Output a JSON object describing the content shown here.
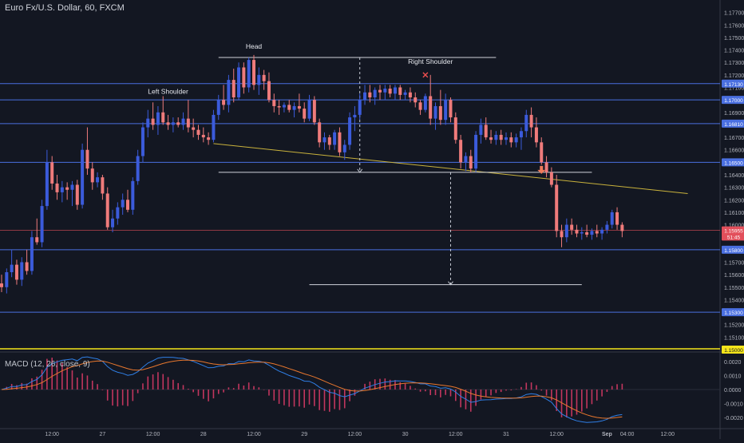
{
  "title": "Euro Fx/U.S. Dollar, 60, FXCM",
  "macd_title": "MACD (12, 26, close, 9)",
  "colors": {
    "background": "#131722",
    "up_candle": "#3b5bdb",
    "down_candle": "#ef7b7b",
    "level_line": "#4a6fe0",
    "neckline": "#c9b23c",
    "support_yellow": "#f5e51b",
    "current_price": "#e24f5b",
    "macd_line": "#2f7fe6",
    "signal_line": "#e8772e",
    "histogram": "#c2365e"
  },
  "chart_data": [
    {
      "type": "candlestick",
      "name": "Euro Fx/U.S. Dollar, 60, FXCM",
      "ylim": [
        1.15,
        1.178
      ],
      "y_ticks": [
        "1.17700",
        "1.17600",
        "1.17500",
        "1.17400",
        "1.17300",
        "1.17200",
        "1.17100",
        "1.17000",
        "1.16900",
        "1.16800",
        "1.16700",
        "1.16600",
        "1.16500",
        "1.16400",
        "1.16300",
        "1.16200",
        "1.16100",
        "1.16000",
        "1.15900",
        "1.15800",
        "1.15700",
        "1.15600",
        "1.15500",
        "1.15400",
        "1.15300",
        "1.15200",
        "1.15100",
        "1.15000"
      ],
      "x_ticks": [
        {
          "label": "12:00",
          "index": 10
        },
        {
          "label": "27",
          "index": 20
        },
        {
          "label": "12:00",
          "index": 30
        },
        {
          "label": "28",
          "index": 40
        },
        {
          "label": "12:00",
          "index": 50
        },
        {
          "label": "29",
          "index": 60
        },
        {
          "label": "12:00",
          "index": 70
        },
        {
          "label": "30",
          "index": 80
        },
        {
          "label": "12:00",
          "index": 90
        },
        {
          "label": "31",
          "index": 100
        },
        {
          "label": "12:00",
          "index": 110
        },
        {
          "label": "Sep",
          "index": 120
        },
        {
          "label": "04:00",
          "index": 124
        },
        {
          "label": "12:00",
          "index": 132
        }
      ],
      "price_badges": [
        {
          "label": "1.17130",
          "value": 1.1713,
          "color": "#4a6fe0"
        },
        {
          "label": "1.17000",
          "value": 1.17,
          "color": "#4a6fe0"
        },
        {
          "label": "1.16810",
          "value": 1.1681,
          "color": "#4a6fe0"
        },
        {
          "label": "1.16500",
          "value": 1.165,
          "color": "#4a6fe0"
        },
        {
          "label": "1.15955",
          "value": 1.15955,
          "color": "#e24f5b"
        },
        {
          "label": "51:45",
          "value": 1.15905,
          "color": "#e24f5b"
        },
        {
          "label": "1.15800",
          "value": 1.158,
          "color": "#4a6fe0"
        },
        {
          "label": "1.15300",
          "value": 1.153,
          "color": "#4a6fe0"
        },
        {
          "label": "1.15000",
          "value": 1.15,
          "color": "#f5e51b"
        }
      ],
      "horizontal_levels": [
        1.1713,
        1.17,
        1.1681,
        1.165,
        1.158,
        1.153
      ],
      "support_level": 1.15,
      "current_price": 1.15955,
      "annotations": [
        {
          "text": "Head",
          "index": 50,
          "price": 1.1741
        },
        {
          "text": "Left Shoulder",
          "index": 33,
          "price": 1.1705
        },
        {
          "text": "Right Shoulder",
          "index": 85,
          "price": 1.1729
        }
      ],
      "neckline": {
        "from": {
          "index": 42,
          "price": 1.1665
        },
        "to": {
          "index": 136,
          "price": 1.1625
        }
      },
      "pattern_lines": [
        {
          "from_index": 43,
          "to_index": 98,
          "price": 1.1734
        },
        {
          "from_index": 43,
          "to_index": 117,
          "price": 1.1642
        },
        {
          "from_index": 61,
          "to_index": 115,
          "price": 1.1552
        }
      ],
      "measure_arrows": [
        {
          "index": 71,
          "from": 1.1734,
          "to": 1.1642
        },
        {
          "index": 89,
          "from": 1.1642,
          "to": 1.1552
        }
      ],
      "x_marker": {
        "index": 84,
        "price": 1.172
      },
      "down_arrow": {
        "index": 107,
        "price": 1.1642
      },
      "candles": [
        [
          1.1553,
          1.156,
          1.1546,
          1.155
        ],
        [
          1.155,
          1.1565,
          1.1545,
          1.1562
        ],
        [
          1.1562,
          1.158,
          1.1558,
          1.1568
        ],
        [
          1.1568,
          1.1572,
          1.1552,
          1.1556
        ],
        [
          1.1556,
          1.1574,
          1.1551,
          1.157
        ],
        [
          1.157,
          1.158,
          1.156,
          1.1563
        ],
        [
          1.1563,
          1.1595,
          1.156,
          1.159
        ],
        [
          1.159,
          1.1605,
          1.1584,
          1.1586
        ],
        [
          1.1586,
          1.162,
          1.1582,
          1.1615
        ],
        [
          1.1615,
          1.166,
          1.1612,
          1.165
        ],
        [
          1.165,
          1.1655,
          1.1628,
          1.1633
        ],
        [
          1.1633,
          1.164,
          1.162,
          1.1626
        ],
        [
          1.1626,
          1.1635,
          1.1618,
          1.163
        ],
        [
          1.163,
          1.1634,
          1.162,
          1.1628
        ],
        [
          1.1628,
          1.1635,
          1.1615,
          1.1632
        ],
        [
          1.1632,
          1.1636,
          1.1612,
          1.1616
        ],
        [
          1.1616,
          1.1665,
          1.1613,
          1.166
        ],
        [
          1.166,
          1.1678,
          1.164,
          1.1645
        ],
        [
          1.1645,
          1.165,
          1.1628,
          1.1634
        ],
        [
          1.1634,
          1.1642,
          1.163,
          1.1638
        ],
        [
          1.1638,
          1.164,
          1.162,
          1.1625
        ],
        [
          1.1625,
          1.163,
          1.1596,
          1.1598
        ],
        [
          1.1598,
          1.1612,
          1.1594,
          1.1605
        ],
        [
          1.1605,
          1.1618,
          1.16,
          1.1614
        ],
        [
          1.1614,
          1.1625,
          1.1608,
          1.162
        ],
        [
          1.162,
          1.1628,
          1.161,
          1.1612
        ],
        [
          1.1612,
          1.1638,
          1.1608,
          1.1635
        ],
        [
          1.1635,
          1.166,
          1.1632,
          1.1655
        ],
        [
          1.1655,
          1.1682,
          1.165,
          1.1678
        ],
        [
          1.1678,
          1.1692,
          1.167,
          1.1685
        ],
        [
          1.1685,
          1.1698,
          1.1676,
          1.168
        ],
        [
          1.168,
          1.1695,
          1.1672,
          1.169
        ],
        [
          1.169,
          1.1703,
          1.168,
          1.1682
        ],
        [
          1.1682,
          1.1688,
          1.1676,
          1.168
        ],
        [
          1.168,
          1.1686,
          1.1674,
          1.1682
        ],
        [
          1.1682,
          1.1686,
          1.1678,
          1.168
        ],
        [
          1.168,
          1.169,
          1.1676,
          1.1685
        ],
        [
          1.1685,
          1.17,
          1.1674,
          1.1678
        ],
        [
          1.1678,
          1.1685,
          1.167,
          1.1676
        ],
        [
          1.1676,
          1.168,
          1.1668,
          1.1672
        ],
        [
          1.1672,
          1.1678,
          1.1666,
          1.167
        ],
        [
          1.167,
          1.1674,
          1.1664,
          1.1668
        ],
        [
          1.1668,
          1.1692,
          1.1666,
          1.1688
        ],
        [
          1.1688,
          1.1704,
          1.1684,
          1.17
        ],
        [
          1.17,
          1.1712,
          1.1692,
          1.1696
        ],
        [
          1.1696,
          1.172,
          1.169,
          1.1716
        ],
        [
          1.1716,
          1.1725,
          1.1698,
          1.1702
        ],
        [
          1.1702,
          1.173,
          1.17,
          1.1726
        ],
        [
          1.1726,
          1.173,
          1.1705,
          1.171
        ],
        [
          1.171,
          1.1734,
          1.1706,
          1.1732
        ],
        [
          1.1732,
          1.1736,
          1.1708,
          1.1712
        ],
        [
          1.1712,
          1.1726,
          1.1704,
          1.172
        ],
        [
          1.172,
          1.1724,
          1.1708,
          1.1715
        ],
        [
          1.1715,
          1.1722,
          1.1698,
          1.17
        ],
        [
          1.17,
          1.1705,
          1.169,
          1.1695
        ],
        [
          1.1695,
          1.17,
          1.1688,
          1.1694
        ],
        [
          1.1694,
          1.1698,
          1.169,
          1.1696
        ],
        [
          1.1696,
          1.17,
          1.169,
          1.1692
        ],
        [
          1.1692,
          1.1698,
          1.1686,
          1.1695
        ],
        [
          1.1695,
          1.1705,
          1.169,
          1.1693
        ],
        [
          1.1693,
          1.1698,
          1.1682,
          1.1685
        ],
        [
          1.1685,
          1.1704,
          1.1683,
          1.17
        ],
        [
          1.17,
          1.1703,
          1.168,
          1.1682
        ],
        [
          1.1682,
          1.1685,
          1.1662,
          1.1666
        ],
        [
          1.1666,
          1.1674,
          1.166,
          1.167
        ],
        [
          1.167,
          1.1672,
          1.166,
          1.1664
        ],
        [
          1.1664,
          1.1676,
          1.166,
          1.1674
        ],
        [
          1.1674,
          1.1678,
          1.1655,
          1.1658
        ],
        [
          1.1658,
          1.1668,
          1.1652,
          1.1664
        ],
        [
          1.1664,
          1.169,
          1.166,
          1.1686
        ],
        [
          1.1686,
          1.1695,
          1.1675,
          1.1688
        ],
        [
          1.1688,
          1.1705,
          1.1684,
          1.17
        ],
        [
          1.17,
          1.1712,
          1.1696,
          1.1706
        ],
        [
          1.1706,
          1.1712,
          1.1698,
          1.1702
        ],
        [
          1.1702,
          1.171,
          1.1696,
          1.1708
        ],
        [
          1.1708,
          1.1712,
          1.17,
          1.1706
        ],
        [
          1.1706,
          1.1712,
          1.17,
          1.1709
        ],
        [
          1.1709,
          1.1712,
          1.1702,
          1.1705
        ],
        [
          1.1705,
          1.1712,
          1.17,
          1.171
        ],
        [
          1.171,
          1.1712,
          1.17,
          1.1704
        ],
        [
          1.1704,
          1.1708,
          1.17,
          1.1706
        ],
        [
          1.1706,
          1.171,
          1.1698,
          1.1702
        ],
        [
          1.1702,
          1.1706,
          1.1694,
          1.1698
        ],
        [
          1.1698,
          1.17,
          1.1688,
          1.1692
        ],
        [
          1.1692,
          1.1705,
          1.169,
          1.1703
        ],
        [
          1.1703,
          1.172,
          1.168,
          1.1685
        ],
        [
          1.1685,
          1.1698,
          1.1676,
          1.1695
        ],
        [
          1.1695,
          1.1708,
          1.168,
          1.1684
        ],
        [
          1.1684,
          1.1705,
          1.168,
          1.17
        ],
        [
          1.17,
          1.1702,
          1.1682,
          1.1686
        ],
        [
          1.1686,
          1.169,
          1.1665,
          1.1668
        ],
        [
          1.1668,
          1.1672,
          1.1645,
          1.165
        ],
        [
          1.165,
          1.1658,
          1.1643,
          1.1655
        ],
        [
          1.1655,
          1.166,
          1.1642,
          1.1645
        ],
        [
          1.1645,
          1.1675,
          1.1642,
          1.1672
        ],
        [
          1.1672,
          1.1685,
          1.1665,
          1.168
        ],
        [
          1.168,
          1.1686,
          1.1668,
          1.167
        ],
        [
          1.167,
          1.1676,
          1.1665,
          1.1668
        ],
        [
          1.1668,
          1.1675,
          1.1664,
          1.1672
        ],
        [
          1.1672,
          1.1676,
          1.1664,
          1.1668
        ],
        [
          1.1668,
          1.1674,
          1.1664,
          1.167
        ],
        [
          1.167,
          1.1674,
          1.1662,
          1.1666
        ],
        [
          1.1666,
          1.1673,
          1.1662,
          1.167
        ],
        [
          1.167,
          1.1678,
          1.166,
          1.1675
        ],
        [
          1.1675,
          1.1692,
          1.167,
          1.1688
        ],
        [
          1.1688,
          1.1694,
          1.167,
          1.1678
        ],
        [
          1.1678,
          1.1686,
          1.1662,
          1.1666
        ],
        [
          1.1666,
          1.167,
          1.1648,
          1.165
        ],
        [
          1.165,
          1.1655,
          1.1638,
          1.1642
        ],
        [
          1.1642,
          1.1646,
          1.163,
          1.1632
        ],
        [
          1.1632,
          1.164,
          1.159,
          1.1595
        ],
        [
          1.1595,
          1.16,
          1.1582,
          1.159
        ],
        [
          1.159,
          1.1605,
          1.1586,
          1.16
        ],
        [
          1.16,
          1.1605,
          1.1592,
          1.1596
        ],
        [
          1.1596,
          1.16,
          1.159,
          1.1593
        ],
        [
          1.1593,
          1.1598,
          1.1588,
          1.1594
        ],
        [
          1.1594,
          1.16,
          1.159,
          1.1592
        ],
        [
          1.1592,
          1.1597,
          1.1588,
          1.1595
        ],
        [
          1.1595,
          1.16,
          1.159,
          1.1593
        ],
        [
          1.1593,
          1.1598,
          1.1588,
          1.1596
        ],
        [
          1.1596,
          1.1603,
          1.1593,
          1.16
        ],
        [
          1.16,
          1.1612,
          1.1597,
          1.161
        ],
        [
          1.161,
          1.1614,
          1.1596,
          1.16
        ],
        [
          1.16,
          1.1602,
          1.159,
          1.1595
        ]
      ]
    },
    {
      "type": "macd",
      "name": "MACD (12, 26, close, 9)",
      "ylim": [
        -0.0025,
        0.0025
      ],
      "y_ticks": [
        "0.0020",
        "0.0010",
        "0.0000",
        "-0.0010",
        "-0.0020"
      ]
    }
  ]
}
